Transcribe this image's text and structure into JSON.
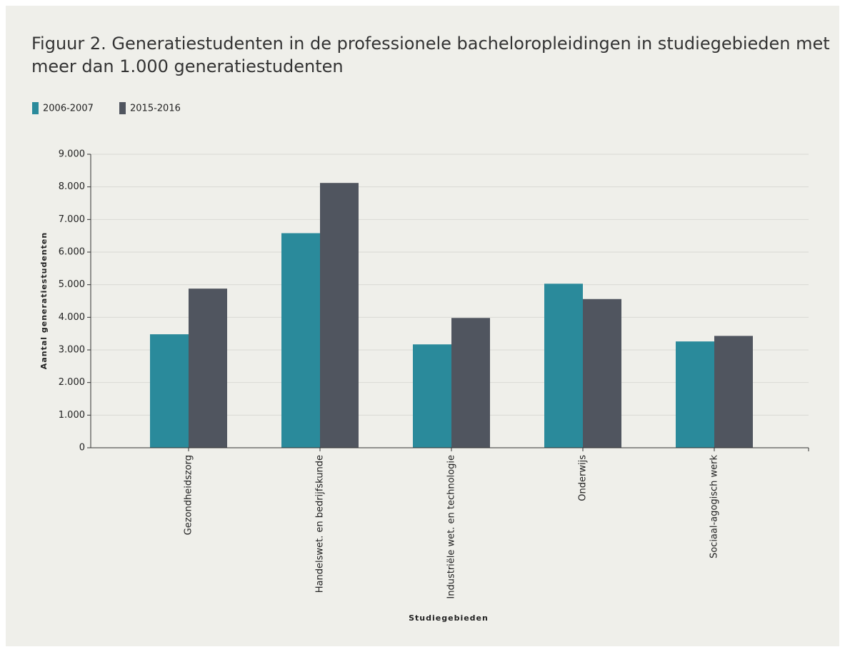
{
  "chart_data": {
    "type": "bar",
    "title": [
      "Figuur 2. Generatiestudenten in de professionele bacheloropleidingen in studiegebieden met",
      "meer dan 1.000 generatiestudenten"
    ],
    "x_label": "Studiegebieden",
    "y_label": "Aantal generatiestudenten",
    "categories": [
      "Gezondheidszorg",
      "Handelswet. en bedrijfskunde",
      "Industriële wet. en technologie",
      "Onderwijs",
      "Sociaal-agogisch werk"
    ],
    "series": [
      {
        "name": "2006-2007",
        "color": "#2a8a9b",
        "values": [
          3480,
          6580,
          3170,
          5030,
          3260
        ]
      },
      {
        "name": "2015-2016",
        "color": "#50555f",
        "values": [
          4880,
          8120,
          3980,
          4560,
          3430
        ]
      }
    ],
    "ylim": [
      0,
      9000
    ],
    "yticks": [
      0,
      {
        "value": 1000,
        "label": "1.000"
      },
      {
        "value": 2000,
        "label": "2.000"
      },
      {
        "value": 3000,
        "label": "3.000"
      },
      {
        "value": 4000,
        "label": "4.000"
      },
      {
        "value": 5000,
        "label": "5.000"
      },
      {
        "value": 6000,
        "label": "6.000"
      },
      {
        "value": 7000,
        "label": "7.000"
      },
      {
        "value": 8000,
        "label": "8.000"
      },
      {
        "value": 9000,
        "label": "9.000"
      }
    ],
    "grid": true,
    "legend": "top-left"
  }
}
